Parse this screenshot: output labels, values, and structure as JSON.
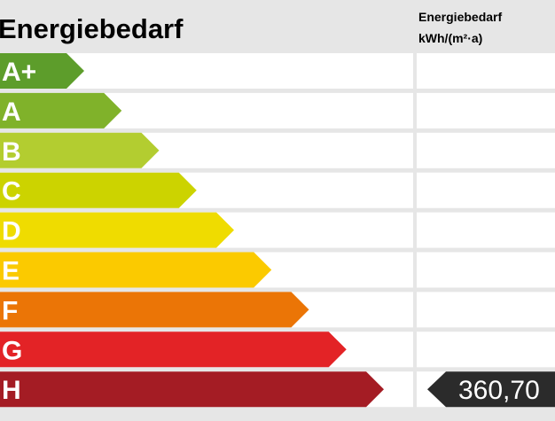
{
  "title": "Energiebedarf",
  "value_column": {
    "header_line1": "Energiebedarf",
    "header_line2": "kWh/(m²·a)"
  },
  "classes": [
    {
      "label": "A+",
      "color": "#5d9d2b"
    },
    {
      "label": "A",
      "color": "#80b22a"
    },
    {
      "label": "B",
      "color": "#b3cd30"
    },
    {
      "label": "C",
      "color": "#ccd300"
    },
    {
      "label": "D",
      "color": "#efdc00"
    },
    {
      "label": "E",
      "color": "#fbca00"
    },
    {
      "label": "F",
      "color": "#eb7506"
    },
    {
      "label": "G",
      "color": "#e32326"
    },
    {
      "label": "H",
      "color": "#a41c24"
    }
  ],
  "indicator": {
    "class_index": 8,
    "value": "360,70"
  }
}
